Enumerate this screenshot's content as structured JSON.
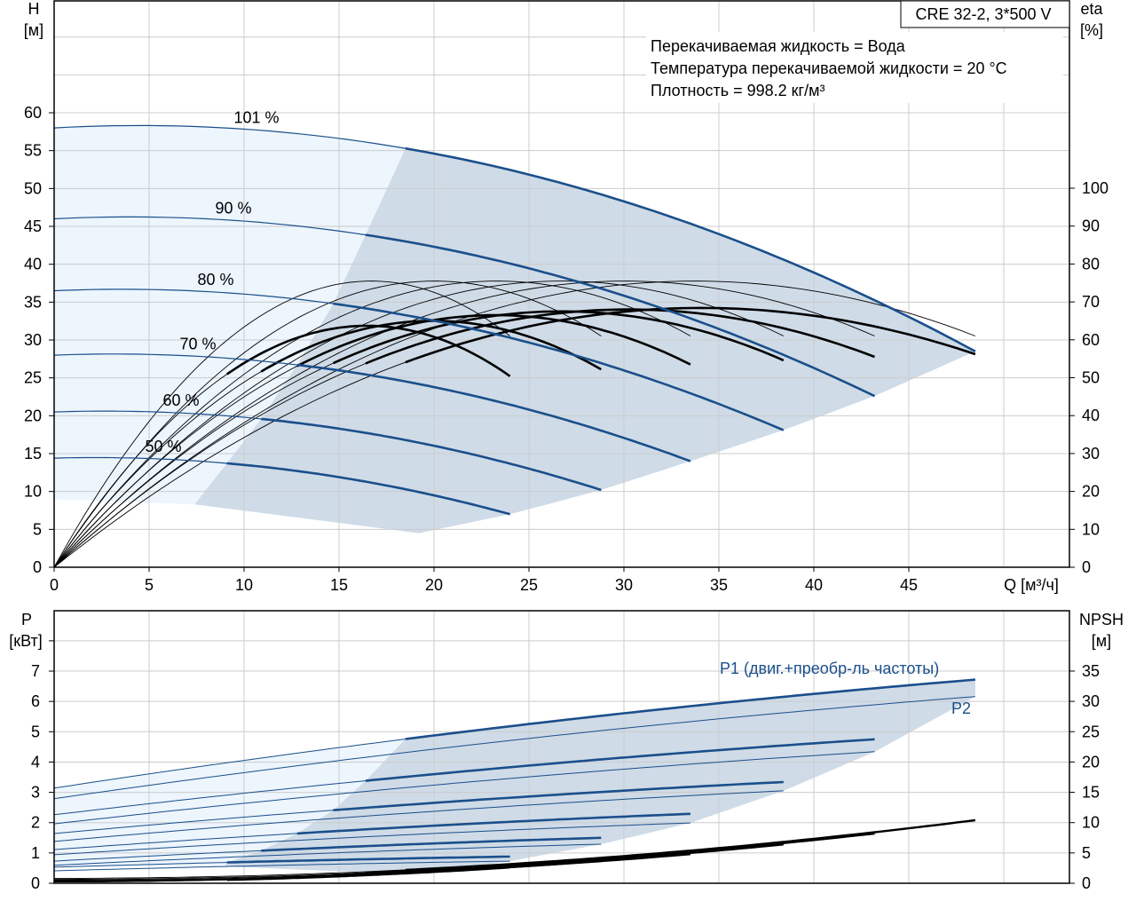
{
  "chart_data": {
    "type": "line",
    "title": "CRE 32-2, 3*500 V",
    "info_lines": [
      "Перекачиваемая жидкость = Вода",
      "Температура перекачиваемой жидкости = 20 °C",
      "Плотность = 998.2 кг/м³"
    ],
    "top_chart": {
      "ylabel_left": "H",
      "ylabel_left_unit": "[м]",
      "ylabel_right": "eta",
      "ylabel_right_unit": "[%]",
      "xlabel": "Q [м³/ч]",
      "xlim": [
        0,
        50
      ],
      "ylim_left": [
        0,
        70
      ],
      "ylim_right": [
        0,
        140
      ],
      "x_ticks": [
        "0",
        "5",
        "10",
        "15",
        "20",
        "25",
        "30",
        "35",
        "40",
        "45"
      ],
      "y_ticks_left": [
        "0",
        "5",
        "10",
        "15",
        "20",
        "25",
        "30",
        "35",
        "40",
        "45",
        "50",
        "55",
        "60"
      ],
      "y_ticks_right": [
        "0",
        "10",
        "20",
        "30",
        "40",
        "50",
        "60",
        "70",
        "80",
        "90",
        "100"
      ],
      "grid": true,
      "operating_region_lower": [
        [
          19.2,
          4.5
        ],
        [
          7.4,
          8.3
        ]
      ],
      "light_region_left_bottom_H": 9
    },
    "bottom_chart": {
      "ylabel_left": "P",
      "ylabel_left_unit": "[кВт]",
      "ylabel_right": "NPSH",
      "ylabel_right_unit": "[м]",
      "ylim_left": [
        0,
        9
      ],
      "ylim_right": [
        0,
        45
      ],
      "y_ticks_left": [
        "0",
        "1",
        "2",
        "3",
        "4",
        "5",
        "6",
        "7"
      ],
      "y_ticks_right": [
        "0",
        "5",
        "10",
        "15",
        "20",
        "25",
        "30",
        "35"
      ],
      "p1_label": "P1 (двиг.+преобр-ль частоты)",
      "p2_label": "P2",
      "light_region_bottom_P": 0.55,
      "operating_region_lower": [
        [
          19,
          0.3
        ],
        [
          9,
          0.55
        ]
      ],
      "grid": true
    },
    "series": [
      {
        "name": "101 %",
        "speed": 1.01,
        "q_end": 48.5,
        "q_op_start": 18.5,
        "h0": 58,
        "h_end": 28.5,
        "eta_pump_max": 75.5,
        "eta_pump_end": 61,
        "eta_total_max": 68.4,
        "eta_total_end": 56.2,
        "p1_start": 3.14,
        "p1_end": 6.72,
        "p2_start": 2.79,
        "p2_end": 6.16,
        "npsh_end": 10.4
      },
      {
        "name": "90 %",
        "speed": 0.9,
        "q_end": 43.2,
        "q_op_start": 16.4,
        "h0": 46,
        "h_end": 22.6,
        "eta_pump_max": 75.5,
        "eta_pump_end": 61,
        "eta_total_max": 68,
        "eta_total_end": 55.5,
        "p1_start": 2.26,
        "p1_end": 4.75,
        "p2_start": 1.96,
        "p2_end": 4.34,
        "npsh_end": 8.2
      },
      {
        "name": "80 %",
        "speed": 0.8,
        "q_end": 38.4,
        "q_op_start": 14.7,
        "h0": 36.5,
        "h_end": 18.1,
        "eta_pump_max": 75.5,
        "eta_pump_end": 61,
        "eta_total_max": 67.5,
        "eta_total_end": 54.6,
        "p1_start": 1.64,
        "p1_end": 3.34,
        "p2_start": 1.38,
        "p2_end": 3.05,
        "npsh_end": 6.4
      },
      {
        "name": "70 %",
        "speed": 0.7,
        "q_end": 33.5,
        "q_op_start": 12.8,
        "h0": 28,
        "h_end": 14,
        "eta_pump_max": 75.5,
        "eta_pump_end": 61,
        "eta_total_max": 66.5,
        "eta_total_end": 53.5,
        "p1_start": 1.11,
        "p1_end": 2.29,
        "p2_start": 0.94,
        "p2_end": 1.99,
        "npsh_end": 4.8
      },
      {
        "name": "60 %",
        "speed": 0.6,
        "q_end": 28.8,
        "q_op_start": 10.9,
        "h0": 20.5,
        "h_end": 10.2,
        "eta_pump_max": 75.5,
        "eta_pump_end": 61,
        "eta_total_max": 65,
        "eta_total_end": 52.2,
        "p1_start": 0.73,
        "p1_end": 1.5,
        "p2_start": 0.59,
        "p2_end": 1.29,
        "npsh_end": 3.7
      },
      {
        "name": "50 %",
        "speed": 0.5,
        "q_end": 24,
        "q_op_start": 9.1,
        "h0": 14.4,
        "h_end": 7,
        "eta_pump_max": 75.5,
        "eta_pump_end": 61,
        "eta_total_max": 63.7,
        "eta_total_end": 50.4,
        "p1_start": 0.53,
        "p1_end": 0.88,
        "p2_start": 0.41,
        "p2_end": 0.73,
        "npsh_end": 2.6
      }
    ],
    "colors": {
      "curve_blue": "#1a4f8b",
      "light_fill": "#edf5fd",
      "dark_fill": "#cfdbe7",
      "grid": "#cccccc",
      "black": "#000000"
    }
  }
}
